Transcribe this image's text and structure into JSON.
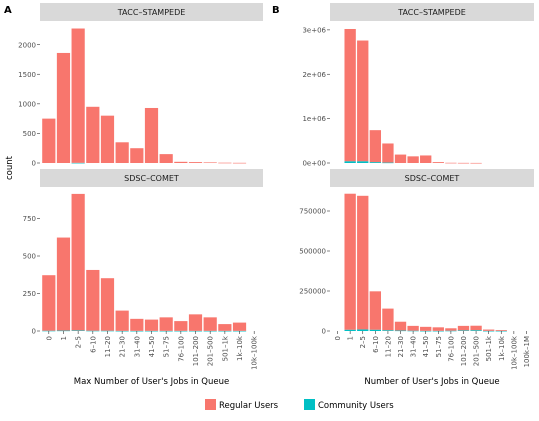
{
  "figure": {
    "legend": {
      "items": [
        {
          "label": "Regular Users",
          "color": "#F8766D"
        },
        {
          "label": "Community Users",
          "color": "#00BFC4"
        }
      ]
    }
  },
  "chart_data": [
    {
      "type": "bar",
      "panel_label": "A",
      "xlabel": "Max Number of User's Jobs in Queue",
      "ylabel": "count",
      "categories": [
        "0",
        "1",
        "2–5",
        "6–10",
        "11–20",
        "21–30",
        "31–40",
        "41–50",
        "51–75",
        "76–100",
        "101–200",
        "201–500",
        "501–1k",
        "1k–10k",
        "10k–100k"
      ],
      "facets": [
        {
          "title": "TACC–STAMPEDE",
          "ylim": [
            0,
            2400
          ],
          "yticks": [
            {
              "v": 0,
              "label": "0"
            },
            {
              "v": 500,
              "label": "500"
            },
            {
              "v": 1000,
              "label": "1000"
            },
            {
              "v": 1500,
              "label": "1500"
            },
            {
              "v": 2000,
              "label": "2000"
            }
          ],
          "series": [
            {
              "name": "Regular Users",
              "values": [
                750,
                1860,
                2270,
                950,
                800,
                350,
                250,
                930,
                150,
                20,
                15,
                10,
                5,
                3,
                0
              ]
            },
            {
              "name": "Community Users",
              "values": [
                0,
                0,
                3,
                0,
                0,
                0,
                0,
                0,
                0,
                0,
                0,
                0,
                0,
                0,
                0
              ]
            }
          ]
        },
        {
          "title": "SDSC–COMET",
          "ylim": [
            0,
            960
          ],
          "yticks": [
            {
              "v": 0,
              "label": "0"
            },
            {
              "v": 250,
              "label": "250"
            },
            {
              "v": 500,
              "label": "500"
            },
            {
              "v": 750,
              "label": "750"
            }
          ],
          "series": [
            {
              "name": "Regular Users",
              "values": [
                370,
                620,
                910,
                405,
                350,
                135,
                80,
                75,
                90,
                65,
                110,
                90,
                45,
                55,
                0
              ]
            },
            {
              "name": "Community Users",
              "values": [
                2,
                3,
                4,
                2,
                2,
                1,
                1,
                1,
                1,
                1,
                1,
                1,
                1,
                1,
                0
              ]
            }
          ]
        }
      ]
    },
    {
      "type": "bar",
      "panel_label": "B",
      "xlabel": "Number of User's Jobs in Queue",
      "ylabel": "",
      "categories": [
        "0",
        "1",
        "2–5",
        "6–10",
        "11–20",
        "21–30",
        "31–40",
        "41–50",
        "51–75",
        "76–100",
        "101–200",
        "201–500",
        "501–1k",
        "1k–10k",
        "10k–100k",
        "100k–1M"
      ],
      "facets": [
        {
          "title": "TACC–STAMPEDE",
          "ylim": [
            0,
            3200000
          ],
          "yticks": [
            {
              "v": 0,
              "label": "0e+00"
            },
            {
              "v": 1000000,
              "label": "1e+06"
            },
            {
              "v": 2000000,
              "label": "2e+06"
            },
            {
              "v": 3000000,
              "label": "3e+06"
            }
          ],
          "series": [
            {
              "name": "Regular Users",
              "values": [
                0,
                2980000,
                2720000,
                720000,
                430000,
                190000,
                150000,
                170000,
                20000,
                5000,
                3000,
                2000,
                0,
                0,
                0,
                0
              ]
            },
            {
              "name": "Community Users",
              "values": [
                0,
                40000,
                40000,
                20000,
                10000,
                0,
                0,
                0,
                0,
                0,
                0,
                0,
                0,
                0,
                0,
                0
              ]
            }
          ]
        },
        {
          "title": "SDSC–COMET",
          "ylim": [
            0,
            900000
          ],
          "yticks": [
            {
              "v": 0,
              "label": "0"
            },
            {
              "v": 250000,
              "label": "250000"
            },
            {
              "v": 500000,
              "label": "500000"
            },
            {
              "v": 750000,
              "label": "750000"
            }
          ],
          "series": [
            {
              "name": "Regular Users",
              "values": [
                0,
                850000,
                835000,
                240000,
                135000,
                55000,
                30000,
                25000,
                22000,
                15000,
                28000,
                28000,
                8000,
                5000,
                0,
                0
              ]
            },
            {
              "name": "Community Users",
              "values": [
                0,
                8000,
                10000,
                8000,
                5000,
                3000,
                2000,
                1000,
                1000,
                2000,
                4000,
                5000,
                1000,
                1000,
                0,
                0
              ]
            }
          ]
        }
      ]
    }
  ]
}
